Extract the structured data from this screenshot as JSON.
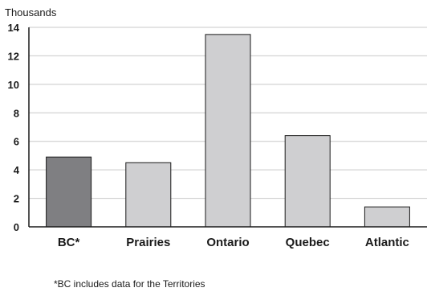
{
  "chart_data": {
    "type": "bar",
    "ylabel": "Thousands",
    "categories": [
      "BC*",
      "Prairies",
      "Ontario",
      "Quebec",
      "Atlantic"
    ],
    "values": [
      4.9,
      4.5,
      13.5,
      6.4,
      1.4
    ],
    "bar_colors": [
      "#7f7f82",
      "#cfcfd1",
      "#cfcfd1",
      "#cfcfd1",
      "#cfcfd1"
    ],
    "ylim": [
      0,
      14
    ],
    "yticks": [
      0,
      2,
      4,
      6,
      8,
      10,
      12,
      14
    ],
    "grid": true,
    "footnote": "*BC includes data for the Territories"
  }
}
